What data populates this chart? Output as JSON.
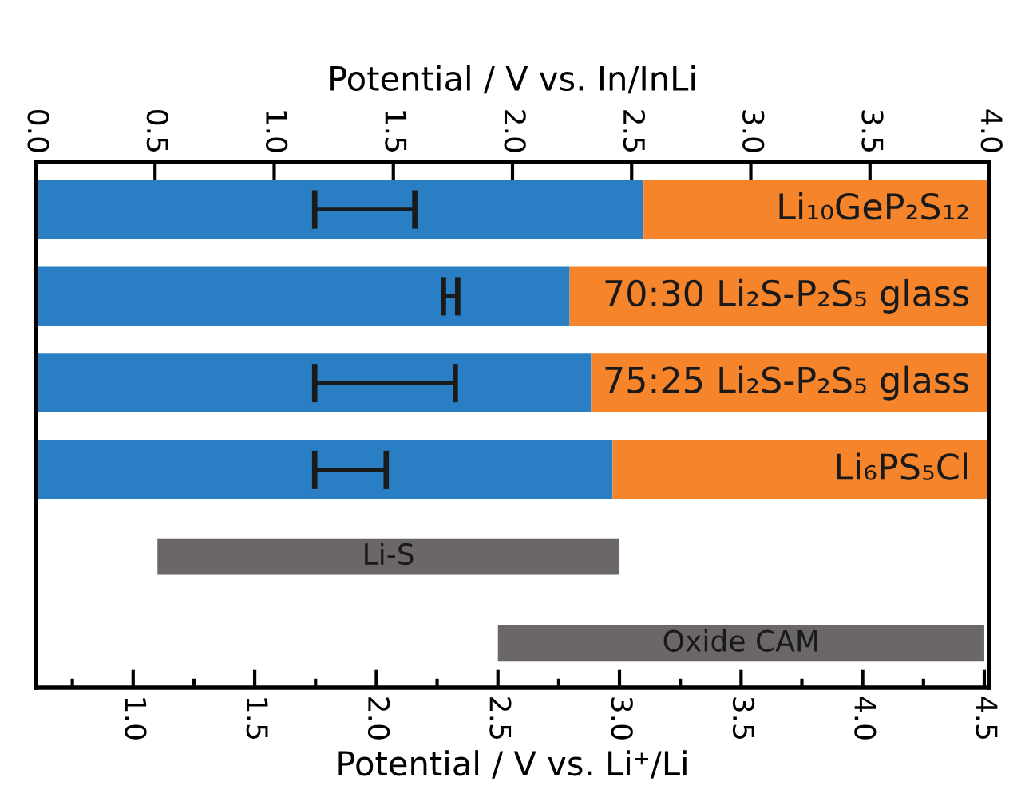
{
  "chart_data": {
    "type": "bar",
    "orientation": "horizontal",
    "categories": [
      "Li₁₀GeP₂S₁₂",
      "70:30 Li₂S-P₂S₅ glass",
      "75:25 Li₂S-P₂S₅ glass",
      "Li₆PS₅Cl",
      "Li-S",
      "Oxide CAM"
    ],
    "series": [
      {
        "axis": "x2",
        "color": "#2a7fc4",
        "base": [
          0.0,
          0.0,
          0.0,
          0.0,
          null,
          null
        ],
        "values": [
          2.55,
          2.24,
          2.33,
          2.42,
          null,
          null
        ]
      },
      {
        "axis": "x2",
        "color": "#f5842a",
        "base": [
          2.55,
          2.24,
          2.33,
          2.42,
          null,
          null
        ],
        "values": [
          1.45,
          1.76,
          1.67,
          1.58,
          null,
          null
        ]
      },
      {
        "axis": "x2",
        "color": "#1a1a1a",
        "base": [
          1.17,
          1.71,
          1.17,
          1.17,
          null,
          null
        ],
        "values": [
          0.42,
          0.06,
          0.59,
          0.3,
          null,
          null
        ]
      },
      {
        "color": "#6b6768",
        "base": [
          null,
          null,
          null,
          null,
          1.1,
          2.5
        ],
        "values": [
          null,
          null,
          null,
          null,
          1.9,
          2.0
        ]
      }
    ],
    "xlabel": "Potential / V vs. Li⁺/Li",
    "x2label": "Potential / V vs. In/InLi",
    "xlim": [
      0.6,
      4.52
    ],
    "xticks": [
      {
        "value": 0.75,
        "label": null
      },
      {
        "value": 1.0,
        "label": "1.0"
      },
      {
        "value": 1.25,
        "label": null
      },
      1.5,
      {
        "value": 1.75,
        "label": null
      },
      {
        "value": 2.0,
        "label": "2.0"
      },
      {
        "value": 2.25,
        "label": null
      },
      2.5,
      {
        "value": 2.75,
        "label": null
      },
      {
        "value": 3.0,
        "label": "3.0"
      },
      {
        "value": 3.25,
        "label": null
      },
      3.5,
      {
        "value": 3.75,
        "label": null
      },
      {
        "value": 4.0,
        "label": "4.0"
      },
      {
        "value": 4.25,
        "label": null
      },
      4.5
    ],
    "x2lim": [
      0.0,
      4.0
    ],
    "x2ticks": [
      {
        "value": 0.0,
        "label": "0.0"
      },
      0.5,
      {
        "value": 1.0,
        "label": "1.0"
      },
      1.5,
      {
        "value": 2.0,
        "label": "2.0"
      },
      2.5,
      {
        "value": 3.0,
        "label": "3.0"
      },
      3.5,
      {
        "value": 4.0,
        "label": "4.0"
      }
    ],
    "grid": false
  }
}
